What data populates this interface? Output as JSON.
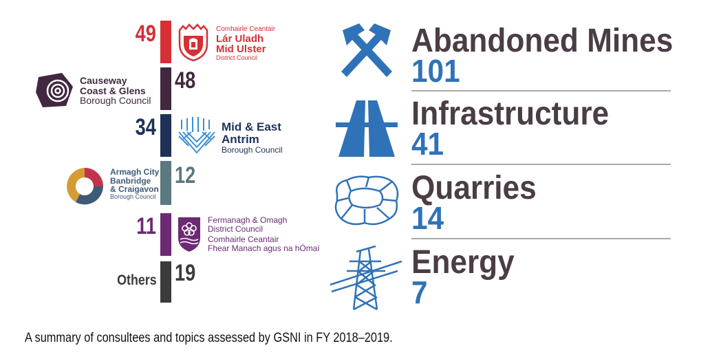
{
  "consultees": [
    {
      "value": "49",
      "name_lines": [
        "Comhairle Ceantair",
        "Lár Uladh",
        "Mid Ulster",
        "District Council"
      ],
      "color": "#d62f36"
    },
    {
      "value": "48",
      "name_lines": [
        "Causeway",
        "Coast & Glens",
        "Borough Council"
      ],
      "color": "#41283f"
    },
    {
      "value": "34",
      "name_lines": [
        "Mid & East",
        "Antrim",
        "Borough Council"
      ],
      "color": "#1e3157"
    },
    {
      "value": "12",
      "name_lines": [
        "Armagh City",
        "Banbridge",
        "& Craigavon",
        "Borough Council"
      ],
      "color": "#5c7880"
    },
    {
      "value": "11",
      "name_lines": [
        "Fermanagh & Omagh",
        "District Council",
        "Comhairle Ceantair",
        "Fhear Manach agus na hÓmaí"
      ],
      "color": "#6b2a73"
    },
    {
      "value": "19",
      "name_lines": [
        "Others"
      ],
      "color": "#3b3b3b"
    }
  ],
  "topics": [
    {
      "label": "Abandoned Mines",
      "value": "101",
      "icon": "crossed-hammers-icon"
    },
    {
      "label": "Infrastructure",
      "value": "41",
      "icon": "road-icon"
    },
    {
      "label": "Quarries",
      "value": "14",
      "icon": "quarry-pit-icon"
    },
    {
      "label": "Energy",
      "value": "7",
      "icon": "power-pylon-icon"
    }
  ],
  "caption": "A summary of consultees and topics assessed by GSNI in FY 2018–2019.",
  "colors": {
    "topic_label": "#4a3d45",
    "topic_value": "#2f72b8",
    "icon_blue": "#2f72b8"
  }
}
